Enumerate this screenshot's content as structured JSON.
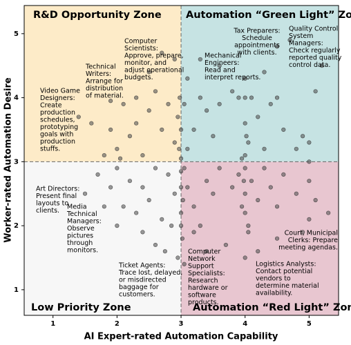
{
  "chart_data": {
    "type": "scatter",
    "xlabel": "AI Expert-rated Automation Capability",
    "ylabel": "Worker-rated Automation Desire",
    "xlim": [
      0.55,
      5.46
    ],
    "ylim": [
      0.6,
      5.44
    ],
    "xticks": [
      1,
      2,
      3,
      4,
      5
    ],
    "yticks": [
      1,
      2,
      3,
      4,
      5
    ],
    "thresholds": {
      "x": 3,
      "y": 3
    },
    "color": "#555555",
    "zones": [
      {
        "name": "R&D Opportunity Zone",
        "color": "#e07b39",
        "background": "#fdebc8"
      },
      {
        "name": "Automation “Green Light” Zone",
        "color": "#2a9d8f",
        "background": "#c6e3e3"
      },
      {
        "name": "Low Priority Zone",
        "color": "#808080",
        "background": "#f7f7f7"
      },
      {
        "name": "Automation “Red Light” Zone",
        "color": "#e0202a",
        "background": "#e8c6d0"
      }
    ],
    "x": [
      1.6,
      1.4,
      1.9,
      2.1,
      2.3,
      2.5,
      2.7,
      2.9,
      2.0,
      2.4,
      2.6,
      2.8,
      2.2,
      1.8,
      2.95,
      2.5,
      2.7,
      2.9,
      2.3,
      2.05,
      3.1,
      3.2,
      3.3,
      3.4,
      3.5,
      3.6,
      3.8,
      3.9,
      4.0,
      4.05,
      4.1,
      4.2,
      4.3,
      4.4,
      4.5,
      4.6,
      4.8,
      4.9,
      5.0,
      5.1,
      3.3,
      3.6,
      4.0,
      4.3,
      4.5,
      4.7,
      5.2,
      3.1,
      3.05,
      3.95,
      1.5,
      1.7,
      1.9,
      2.0,
      2.2,
      2.4,
      2.6,
      2.8,
      2.9,
      2.1,
      2.3,
      2.5,
      2.7,
      2.85,
      2.0,
      1.8,
      2.4,
      2.6,
      2.75,
      2.95,
      3.05,
      3.1,
      3.2,
      3.3,
      3.4,
      3.5,
      3.6,
      3.8,
      3.9,
      4.0,
      4.0,
      4.05,
      4.1,
      4.2,
      4.3,
      4.4,
      4.5,
      4.6,
      4.8,
      5.0,
      5.1,
      5.3,
      4.9,
      4.5,
      4.2,
      4.0,
      3.7,
      3.4,
      3.2,
      3.05,
      3.0,
      3.0,
      3.0,
      3.0,
      3.0,
      2.98,
      3.02,
      3.0,
      2.97,
      3.03,
      4.0,
      4.0,
      4.0,
      3.98,
      4.02,
      3.95,
      4.05,
      5.0,
      5.0,
      1.9
    ],
    "values": [
      3.6,
      3.7,
      3.5,
      3.9,
      4.0,
      3.8,
      3.5,
      3.3,
      3.2,
      3.1,
      4.1,
      3.9,
      3.4,
      3.1,
      3.7,
      4.4,
      4.7,
      4.6,
      3.6,
      3.05,
      3.2,
      3.5,
      4.0,
      3.8,
      3.4,
      3.9,
      4.1,
      4.0,
      3.6,
      3.3,
      4.0,
      3.7,
      3.2,
      3.9,
      4.0,
      3.5,
      3.2,
      3.4,
      3.3,
      4.1,
      4.6,
      4.5,
      4.3,
      4.4,
      4.8,
      4.9,
      4.5,
      4.3,
      3.9,
      3.05,
      2.5,
      2.8,
      2.6,
      2.9,
      2.7,
      2.6,
      2.9,
      2.8,
      2.5,
      2.3,
      2.2,
      2.4,
      2.1,
      2.0,
      2.0,
      2.3,
      1.9,
      1.7,
      1.6,
      1.5,
      2.9,
      2.6,
      2.3,
      2.0,
      2.7,
      2.5,
      2.9,
      2.6,
      2.8,
      2.5,
      2.2,
      2.0,
      2.7,
      2.4,
      2.9,
      2.6,
      2.3,
      2.8,
      2.5,
      2.7,
      2.4,
      2.2,
      1.9,
      1.8,
      1.6,
      1.5,
      1.7,
      1.6,
      1.9,
      1.4,
      3.05,
      2.85,
      2.6,
      3.5,
      2.2,
      4.0,
      1.8,
      2.0,
      3.2,
      2.4,
      2.9,
      3.1,
      4.0,
      2.7,
      3.4,
      2.3,
      1.9,
      3.0,
      2.1,
      3.95
    ],
    "annotations": [
      {
        "lines": [
          "Computer",
          "Scientists:",
          "Approve, prepare,",
          "monitor, and",
          "adjust operational",
          "budgets."
        ]
      },
      {
        "lines": [
          "Technical",
          "Writers:",
          "Arrange for",
          "distribution",
          "of material."
        ]
      },
      {
        "lines": [
          "Video Game",
          "Designers:",
          "Create",
          "production",
          "schedules,",
          "prototyping",
          "goals with",
          "production",
          "stuffs."
        ]
      },
      {
        "lines": [
          "Tax Preparers:",
          "Schedule",
          "appointments",
          "with clients."
        ]
      },
      {
        "lines": [
          "Quality Control",
          "System",
          "Managers:",
          "Check regularly",
          "reported quality",
          "control data."
        ]
      },
      {
        "lines": [
          "Mechanical",
          "Engineers:",
          "Read and",
          "interpret reports."
        ]
      },
      {
        "lines": [
          "Art Directors:",
          "Present final",
          "layouts to",
          "clients."
        ]
      },
      {
        "lines": [
          "Media",
          "Technical",
          "Managers:",
          "Observe",
          "pictures",
          "through",
          "monitors."
        ]
      },
      {
        "lines": [
          "Ticket Agents:",
          "Trace lost, delayed,",
          "or misdirected",
          "baggage for",
          "customers."
        ]
      },
      {
        "lines": [
          "Computer",
          "Network",
          "Support",
          "Specialists:",
          "Research",
          "hardware or",
          "software",
          "products."
        ]
      },
      {
        "lines": [
          "Logistics Analysts:",
          "Contact potential",
          "vendors to",
          "determine material",
          "availability."
        ]
      },
      {
        "lines": [
          "Court, Municipal",
          "Clerks: Prepare",
          "meeting agendas."
        ]
      }
    ]
  }
}
